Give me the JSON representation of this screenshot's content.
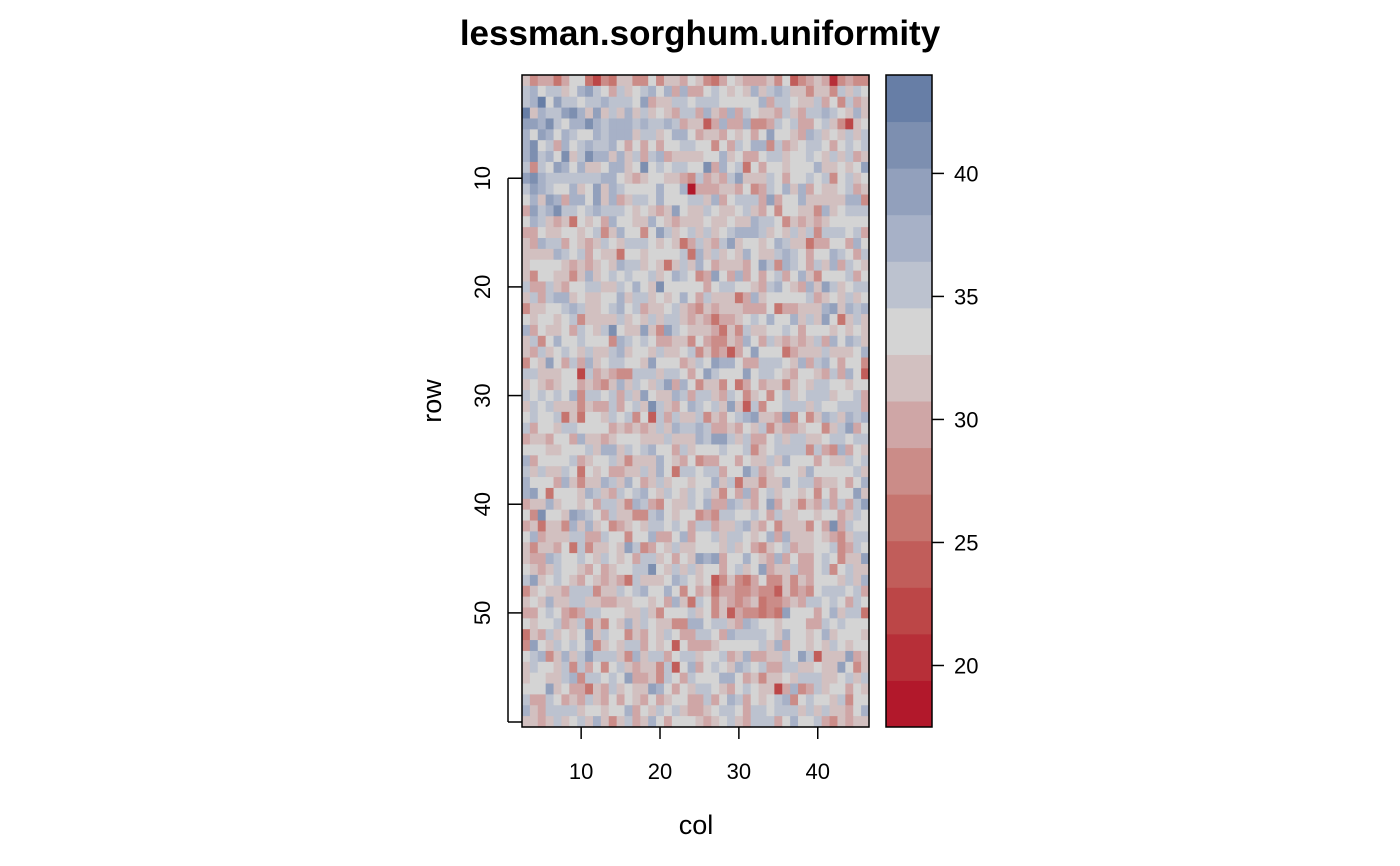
{
  "chart_data": {
    "type": "heatmap",
    "title": "lessman.sorghum.uniformity",
    "xlabel": "col",
    "ylabel": "row",
    "x_range": [
      3,
      46
    ],
    "y_range": [
      1,
      60
    ],
    "y_reversed": true,
    "x_ticks": [
      10,
      20,
      30,
      40
    ],
    "y_ticks": [
      10,
      20,
      30,
      40,
      50
    ],
    "value_range": [
      17.5,
      44
    ],
    "legend": {
      "position": "right",
      "ticks": [
        20,
        25,
        30,
        35,
        40
      ],
      "colors": [
        "#b2182b",
        "#b72f38",
        "#bc4647",
        "#c15d5a",
        "#c6756f",
        "#cb8c88",
        "#cfa6a6",
        "#d2c0c0",
        "#d4d4d4",
        "#bcc2cf",
        "#a7b1c7",
        "#92a0bc",
        "#7d8fb0",
        "#677ea6"
      ]
    },
    "cells_summary": "Grid of ~44 columns x 60 rows of yield values (about 18 to 44). Values are generally mid-range (~30-36), higher (blue) in rows 2-12 for columns 3-20, with scattered low (red) cells, notably near row 48-49, col 29-34 and row 23-25, col 26-29."
  }
}
